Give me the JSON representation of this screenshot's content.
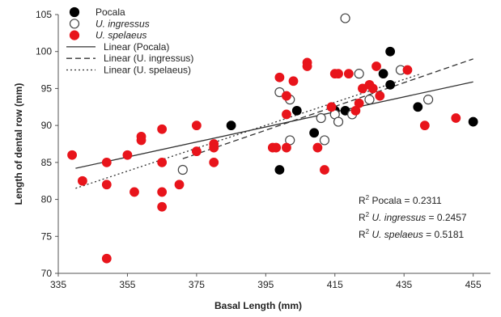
{
  "chart_data": {
    "type": "scatter",
    "xlabel": "Basal Length (mm)",
    "ylabel": "Length of dental row (mm)",
    "xlim": [
      335,
      460
    ],
    "ylim": [
      70,
      105
    ],
    "xticks": [
      "335",
      "355",
      "375",
      "395",
      "415",
      "435",
      "455"
    ],
    "yticks": [
      "70",
      "75",
      "80",
      "85",
      "90",
      "95",
      "100",
      "105"
    ],
    "grid": false,
    "legend_position": "top-left",
    "legend": [
      {
        "label": "Pocala",
        "marker": "filled-circle",
        "color": "#000000"
      },
      {
        "label": "U. ingressus",
        "marker": "open-circle",
        "color": "#000000"
      },
      {
        "label": "U. spelaeus",
        "marker": "filled-circle",
        "color": "#e8141b"
      },
      {
        "label": "Linear   (Pocala)",
        "line": "solid"
      },
      {
        "label": "Linear   (U. ingressus)",
        "line": "dashed"
      },
      {
        "label": "Linear   (U. spelaeus)",
        "line": "dotted"
      }
    ],
    "series": [
      {
        "name": "Pocala",
        "color": "#000000",
        "points": [
          [
            385,
            90
          ],
          [
            399,
            84
          ],
          [
            404,
            92
          ],
          [
            409,
            89
          ],
          [
            415,
            92
          ],
          [
            418,
            92
          ],
          [
            429,
            97
          ],
          [
            431,
            95.5
          ],
          [
            431,
            100
          ],
          [
            439,
            92.5
          ],
          [
            455,
            90.5
          ]
        ]
      },
      {
        "name": "U. ingressus",
        "color": "#000000",
        "points": [
          [
            371,
            84
          ],
          [
            399,
            94.5
          ],
          [
            402,
            93.5
          ],
          [
            402,
            88
          ],
          [
            411,
            91
          ],
          [
            412,
            88
          ],
          [
            415,
            91.5
          ],
          [
            416,
            90.5
          ],
          [
            418,
            104.5
          ],
          [
            420,
            91.5
          ],
          [
            422,
            97
          ],
          [
            425,
            93.5
          ],
          [
            434,
            97.5
          ],
          [
            442,
            93.5
          ]
        ]
      },
      {
        "name": "U. spelaeus",
        "color": "#e8141b",
        "points": [
          [
            339,
            86
          ],
          [
            342,
            82.5
          ],
          [
            349,
            72
          ],
          [
            349,
            85
          ],
          [
            349,
            82
          ],
          [
            355,
            86
          ],
          [
            357,
            81
          ],
          [
            359,
            88.5
          ],
          [
            359,
            88
          ],
          [
            365,
            89.5
          ],
          [
            365,
            85
          ],
          [
            365,
            81
          ],
          [
            365,
            79
          ],
          [
            370,
            82
          ],
          [
            375,
            90
          ],
          [
            375,
            86.5
          ],
          [
            380,
            87.5
          ],
          [
            380,
            87
          ],
          [
            380,
            85
          ],
          [
            397,
            87
          ],
          [
            398,
            87
          ],
          [
            399,
            96.5
          ],
          [
            401,
            94
          ],
          [
            401,
            91.5
          ],
          [
            401,
            87
          ],
          [
            403,
            96
          ],
          [
            407,
            98.5
          ],
          [
            407,
            98
          ],
          [
            410,
            87
          ],
          [
            412,
            84
          ],
          [
            414,
            92.5
          ],
          [
            415,
            97
          ],
          [
            416,
            97
          ],
          [
            419,
            97
          ],
          [
            421,
            92
          ],
          [
            422,
            93
          ],
          [
            423,
            95
          ],
          [
            425,
            95.5
          ],
          [
            426,
            95
          ],
          [
            427,
            98
          ],
          [
            428,
            94
          ],
          [
            436,
            97.5
          ],
          [
            441,
            90
          ],
          [
            450,
            91
          ]
        ]
      }
    ],
    "trendlines": [
      {
        "name": "Linear   (Pocala)",
        "style": "solid",
        "x": [
          340,
          455
        ],
        "y": [
          84.2,
          95.9
        ]
      },
      {
        "name": "Linear   (U. ingressus)",
        "style": "dashed",
        "x": [
          371,
          455
        ],
        "y": [
          85.5,
          99.0
        ]
      },
      {
        "name": "Linear   (U. spelaeus)",
        "style": "dotted",
        "x": [
          340,
          440
        ],
        "y": [
          81.5,
          97.0
        ]
      }
    ],
    "annotations": [
      {
        "prefix": "R",
        "sup": "2",
        "species": "Pocala",
        "value": " = 0.2311",
        "italic": false
      },
      {
        "prefix": "R",
        "sup": "2",
        "species": "U. ingressus",
        "value": " = 0.2457",
        "italic": true
      },
      {
        "prefix": "R",
        "sup": "2",
        "species": "U. spelaeus",
        "value": " = 0.5181",
        "italic": true
      }
    ]
  }
}
